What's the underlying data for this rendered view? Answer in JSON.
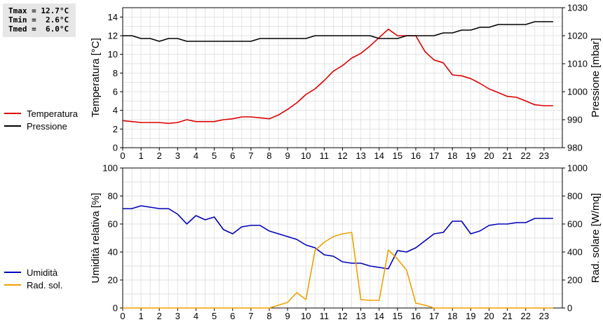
{
  "stats": {
    "tmax": "Tmax = 12.7°C",
    "tmin": "Tmin =  2.6°C",
    "tmed": "Tmed =  6.0°C"
  },
  "legend_top": [
    {
      "label": "Temperatura",
      "color": "#dd0000"
    },
    {
      "label": "Pressione",
      "color": "#000000"
    }
  ],
  "legend_bottom": [
    {
      "label": "Umidità",
      "color": "#0000bb"
    },
    {
      "label": "Rad. sol.",
      "color": "#f0a000"
    }
  ],
  "chart_data": [
    {
      "type": "line",
      "xlabel": "",
      "ylabel": "Temperatura [°C]",
      "y2label": "Pressione [mbar]",
      "xlim": [
        0,
        24
      ],
      "ylim": [
        0,
        15
      ],
      "y2lim": [
        980,
        1030
      ],
      "x_ticks": [
        0,
        1,
        2,
        3,
        4,
        5,
        6,
        7,
        8,
        9,
        10,
        11,
        12,
        13,
        14,
        15,
        16,
        17,
        18,
        19,
        20,
        21,
        22,
        23
      ],
      "y_ticks": [
        0,
        2,
        4,
        6,
        8,
        10,
        12,
        14
      ],
      "y2_ticks": [
        980,
        990,
        1000,
        1010,
        1020,
        1030
      ],
      "grid": true,
      "series": [
        {
          "name": "Temperatura",
          "axis": "left",
          "color": "#dd0000",
          "x": [
            0,
            0.5,
            1,
            1.5,
            2,
            2.5,
            3,
            3.5,
            4,
            4.5,
            5,
            5.5,
            6,
            6.5,
            7,
            7.5,
            8,
            8.5,
            9,
            9.5,
            10,
            10.5,
            11,
            11.5,
            12,
            12.5,
            13,
            13.5,
            14,
            14.5,
            15,
            15.5,
            16,
            16.5,
            17,
            17.5,
            18,
            18.5,
            19,
            19.5,
            20,
            20.5,
            21,
            21.5,
            22,
            22.5,
            23,
            23.5
          ],
          "values": [
            2.9,
            2.8,
            2.7,
            2.7,
            2.7,
            2.6,
            2.7,
            3.0,
            2.8,
            2.8,
            2.8,
            3.0,
            3.1,
            3.3,
            3.3,
            3.2,
            3.1,
            3.5,
            4.1,
            4.8,
            5.7,
            6.3,
            7.2,
            8.2,
            8.8,
            9.6,
            10.1,
            10.9,
            11.8,
            12.7,
            12.0,
            12.0,
            12.0,
            10.3,
            9.4,
            9.1,
            7.8,
            7.7,
            7.4,
            6.9,
            6.3,
            5.9,
            5.5,
            5.4,
            5.0,
            4.6,
            4.5,
            4.5
          ]
        },
        {
          "name": "Pressione",
          "axis": "right",
          "color": "#000000",
          "x": [
            0,
            0.5,
            1,
            1.5,
            2,
            2.5,
            3,
            3.5,
            4,
            4.5,
            5,
            5.5,
            6,
            6.5,
            7,
            7.5,
            8,
            8.5,
            9,
            9.5,
            10,
            10.5,
            11,
            11.5,
            12,
            12.5,
            13,
            13.5,
            14,
            14.5,
            15,
            15.5,
            16,
            16.5,
            17,
            17.5,
            18,
            18.5,
            19,
            19.5,
            20,
            20.5,
            21,
            21.5,
            22,
            22.5,
            23,
            23.5
          ],
          "values": [
            1020,
            1020,
            1019,
            1019,
            1018,
            1019,
            1019,
            1018,
            1018,
            1018,
            1018,
            1018,
            1018,
            1018,
            1018,
            1019,
            1019,
            1019,
            1019,
            1019,
            1019,
            1020,
            1020,
            1020,
            1020,
            1020,
            1020,
            1020,
            1019,
            1019,
            1019,
            1020,
            1020,
            1020,
            1020,
            1021,
            1021,
            1022,
            1022,
            1023,
            1023,
            1024,
            1024,
            1024,
            1024,
            1025,
            1025,
            1025
          ]
        }
      ]
    },
    {
      "type": "line",
      "xlabel": "",
      "ylabel": "Umidità relativa [%]",
      "y2label": "Rad. solare [W/mq]",
      "xlim": [
        0,
        24
      ],
      "ylim": [
        0,
        100
      ],
      "y2lim": [
        0,
        1000
      ],
      "x_ticks": [
        0,
        1,
        2,
        3,
        4,
        5,
        6,
        7,
        8,
        9,
        10,
        11,
        12,
        13,
        14,
        15,
        16,
        17,
        18,
        19,
        20,
        21,
        22,
        23
      ],
      "y_ticks": [
        0,
        20,
        40,
        60,
        80,
        100
      ],
      "y2_ticks": [
        0,
        200,
        400,
        600,
        800,
        1000
      ],
      "grid": true,
      "series": [
        {
          "name": "Umidità",
          "axis": "left",
          "color": "#0000bb",
          "x": [
            0,
            0.5,
            1,
            1.5,
            2,
            2.5,
            3,
            3.5,
            4,
            4.5,
            5,
            5.5,
            6,
            6.5,
            7,
            7.5,
            8,
            8.5,
            9,
            9.5,
            10,
            10.5,
            11,
            11.5,
            12,
            12.5,
            13,
            13.5,
            14,
            14.5,
            15,
            15.5,
            16,
            16.5,
            17,
            17.5,
            18,
            18.5,
            19,
            19.5,
            20,
            20.5,
            21,
            21.5,
            22,
            22.5,
            23,
            23.5
          ],
          "values": [
            71,
            71,
            73,
            72,
            71,
            71,
            67,
            60,
            66,
            63,
            65,
            56,
            53,
            58,
            59,
            59,
            55,
            53,
            51,
            49,
            45,
            43,
            38,
            37,
            33,
            32,
            32,
            30,
            29,
            28,
            41,
            40,
            43,
            48,
            53,
            54,
            62,
            62,
            53,
            55,
            59,
            60,
            60,
            61,
            61,
            64,
            64,
            64
          ]
        },
        {
          "name": "Rad. sol.",
          "axis": "right",
          "color": "#f0a000",
          "x": [
            0,
            0.5,
            1,
            1.5,
            2,
            2.5,
            3,
            3.5,
            4,
            4.5,
            5,
            5.5,
            6,
            6.5,
            7,
            7.5,
            8,
            8.5,
            9,
            9.5,
            10,
            10.5,
            11,
            11.5,
            12,
            12.5,
            13,
            13.5,
            14,
            14.5,
            15,
            15.5,
            16,
            16.5,
            17,
            17.5,
            18,
            18.5,
            19,
            19.5,
            20,
            20.5,
            21,
            21.5,
            22,
            22.5,
            23,
            23.5
          ],
          "values": [
            0,
            0,
            0,
            0,
            0,
            0,
            0,
            0,
            0,
            0,
            0,
            0,
            0,
            0,
            0,
            0,
            0,
            20,
            40,
            110,
            60,
            410,
            470,
            510,
            530,
            540,
            60,
            55,
            55,
            415,
            350,
            270,
            35,
            20,
            0,
            0,
            0,
            0,
            0,
            0,
            0,
            0,
            0,
            0,
            0,
            0,
            0,
            0
          ]
        }
      ]
    }
  ]
}
